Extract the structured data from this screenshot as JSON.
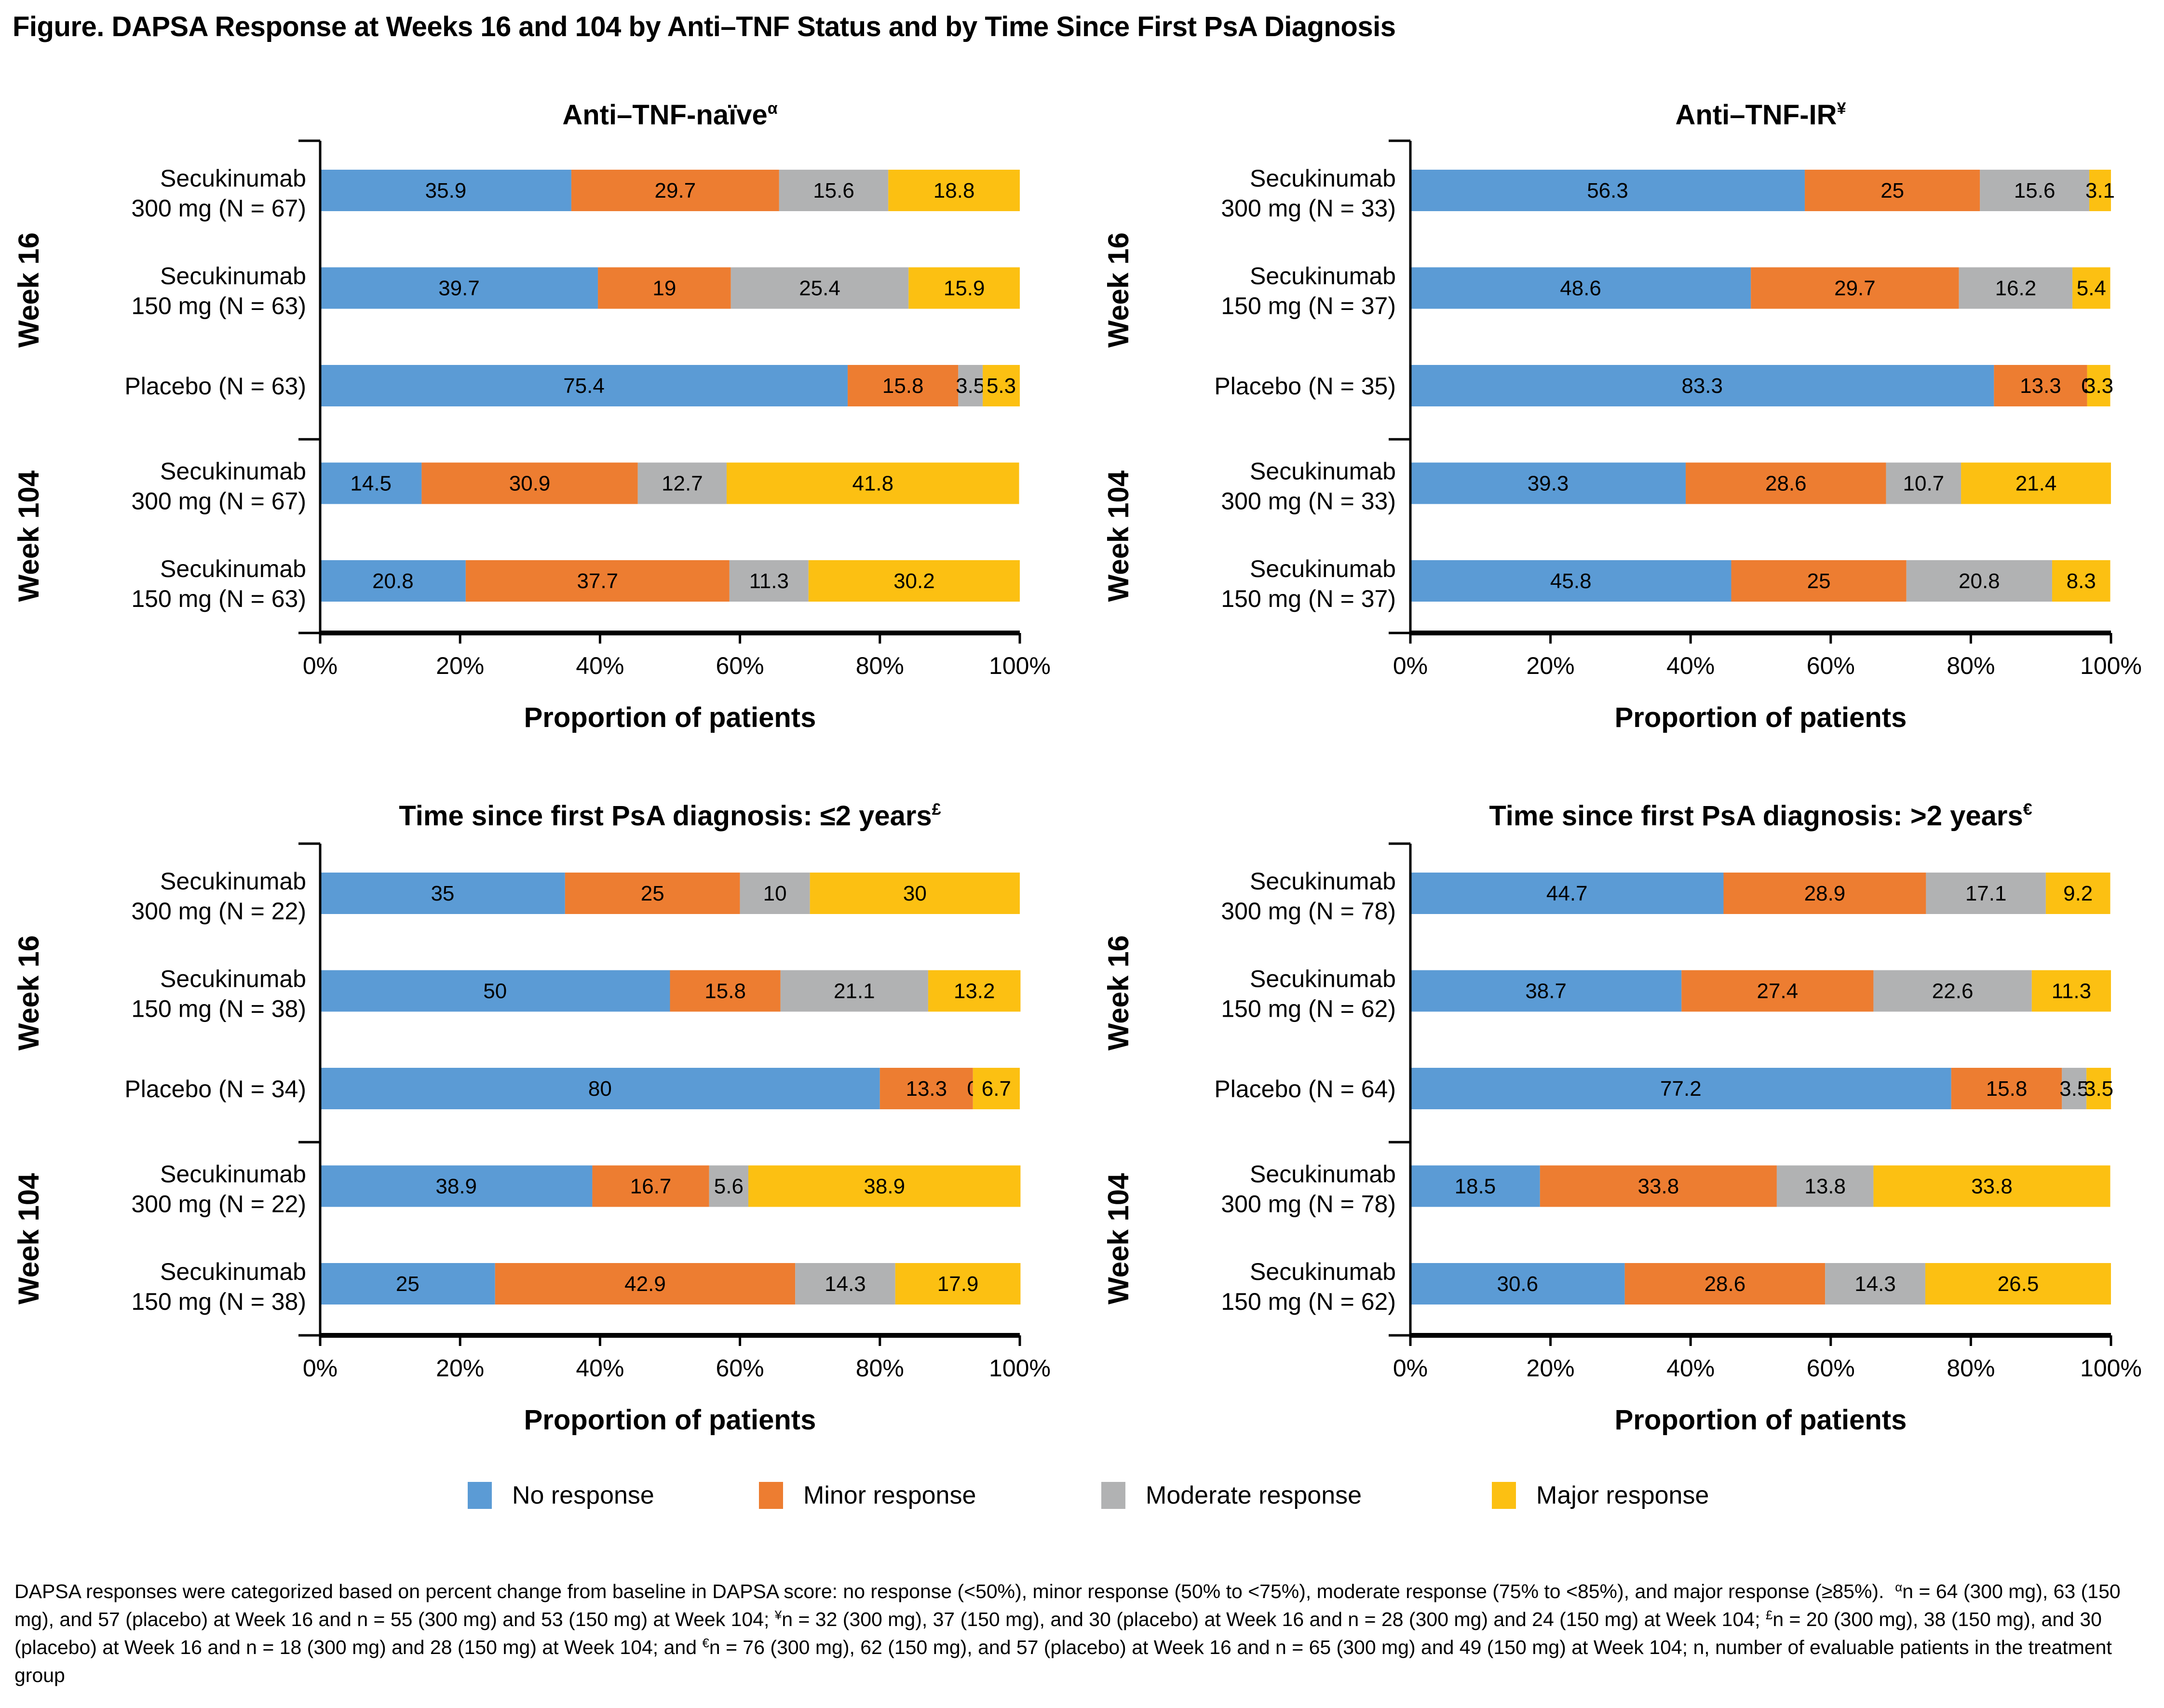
{
  "figure_title": "Figure. DAPSA Response at Weeks 16 and 104 by Anti–TNF Status and by Time Since First PsA Diagnosis",
  "colors": {
    "no_response": "#5B9BD5",
    "minor_response": "#ED7D31",
    "moderate_response": "#B1B2B3",
    "major_response": "#FCC012"
  },
  "legend": [
    {
      "key": "no_response",
      "label": "No response"
    },
    {
      "key": "minor_response",
      "label": "Minor response"
    },
    {
      "key": "moderate_response",
      "label": "Moderate response"
    },
    {
      "key": "major_response",
      "label": "Major response"
    }
  ],
  "footnote": {
    "text_1": "DAPSA responses were categorized based on percent change from baseline in DAPSA score: no response (<50%), minor response (50% to <75%), moderate response (75% to <85%), and major response (≥85%).",
    "mark_a": "α",
    "text_a": "n = 64 (300 mg), 63 (150 mg), and 57 (placebo) at Week 16 and n = 55 (300 mg) and 53 (150 mg) at Week 104;",
    "mark_b": "¥",
    "text_b": "n = 32 (300 mg), 37 (150 mg), and 30 (placebo) at Week 16 and n = 28 (300 mg) and 24 (150 mg) at Week 104;",
    "mark_c": "£",
    "text_c": "n = 20 (300 mg), 38 (150 mg), and 30 (placebo) at Week 16 and n = 18 (300 mg) and 28 (150 mg) at Week 104; and",
    "mark_d": "€",
    "text_d": "n = 76 (300 mg), 62 (150 mg), and 57 (placebo) at Week 16 and n = 65 (300 mg) and 49 (150 mg) at Week 104; n, number of evaluable patients in the treatment group"
  },
  "chart_data": [
    {
      "type": "bar",
      "orientation": "horizontal",
      "stacked": true,
      "title": "Anti–TNF-naïve",
      "title_superscript": "α",
      "xlabel": "Proportion of patients",
      "xlim": [
        0,
        100
      ],
      "xticks": [
        "0%",
        "20%",
        "40%",
        "60%",
        "80%",
        "100%"
      ],
      "groups": [
        {
          "label": "Week 16",
          "rows": [
            0,
            1,
            2
          ]
        },
        {
          "label": "Week 104",
          "rows": [
            3,
            4
          ]
        }
      ],
      "categories": [
        [
          "Secukinumab",
          "300 mg (N = 67)"
        ],
        [
          "Secukinumab",
          "150 mg (N = 63)"
        ],
        [
          "Placebo (N = 63)"
        ],
        [
          "Secukinumab",
          "300 mg (N = 67)"
        ],
        [
          "Secukinumab",
          "150 mg (N = 63)"
        ]
      ],
      "series": [
        {
          "name": "No response",
          "values": [
            35.9,
            39.7,
            75.4,
            14.5,
            20.8
          ]
        },
        {
          "name": "Minor response",
          "values": [
            29.7,
            19,
            15.8,
            30.9,
            37.7
          ]
        },
        {
          "name": "Moderate response",
          "values": [
            15.6,
            25.4,
            3.5,
            12.7,
            11.3
          ]
        },
        {
          "name": "Major response",
          "values": [
            18.8,
            15.9,
            5.3,
            41.8,
            30.2
          ]
        }
      ]
    },
    {
      "type": "bar",
      "orientation": "horizontal",
      "stacked": true,
      "title": "Anti–TNF-IR",
      "title_superscript": "¥",
      "xlabel": "Proportion of patients",
      "xlim": [
        0,
        100
      ],
      "xticks": [
        "0%",
        "20%",
        "40%",
        "60%",
        "80%",
        "100%"
      ],
      "groups": [
        {
          "label": "Week 16",
          "rows": [
            0,
            1,
            2
          ]
        },
        {
          "label": "Week 104",
          "rows": [
            3,
            4
          ]
        }
      ],
      "categories": [
        [
          "Secukinumab",
          "300 mg (N = 33)"
        ],
        [
          "Secukinumab",
          "150 mg (N = 37)"
        ],
        [
          "Placebo (N = 35)"
        ],
        [
          "Secukinumab",
          "300 mg (N = 33)"
        ],
        [
          "Secukinumab",
          "150 mg (N = 37)"
        ]
      ],
      "series": [
        {
          "name": "No response",
          "values": [
            56.3,
            48.6,
            83.3,
            39.3,
            45.8
          ]
        },
        {
          "name": "Minor response",
          "values": [
            25,
            29.7,
            13.3,
            28.6,
            25
          ]
        },
        {
          "name": "Moderate response",
          "values": [
            15.6,
            16.2,
            0,
            10.7,
            20.8
          ]
        },
        {
          "name": "Major response",
          "values": [
            3.1,
            5.4,
            3.3,
            21.4,
            8.3
          ]
        }
      ]
    },
    {
      "type": "bar",
      "orientation": "horizontal",
      "stacked": true,
      "title": "Time since first PsA diagnosis: ≤2 years",
      "title_superscript": "£",
      "xlabel": "Proportion of patients",
      "xlim": [
        0,
        100
      ],
      "xticks": [
        "0%",
        "20%",
        "40%",
        "60%",
        "80%",
        "100%"
      ],
      "groups": [
        {
          "label": "Week 16",
          "rows": [
            0,
            1,
            2
          ]
        },
        {
          "label": "Week 104",
          "rows": [
            3,
            4
          ]
        }
      ],
      "categories": [
        [
          "Secukinumab",
          "300 mg (N = 22)"
        ],
        [
          "Secukinumab",
          "150 mg (N = 38)"
        ],
        [
          "Placebo (N = 34)"
        ],
        [
          "Secukinumab",
          "300 mg (N = 22)"
        ],
        [
          "Secukinumab",
          "150 mg (N = 38)"
        ]
      ],
      "series": [
        {
          "name": "No response",
          "values": [
            35,
            50,
            80,
            38.9,
            25
          ]
        },
        {
          "name": "Minor response",
          "values": [
            25,
            15.8,
            13.3,
            16.7,
            42.9
          ]
        },
        {
          "name": "Moderate response",
          "values": [
            10,
            21.1,
            0,
            5.6,
            14.3
          ]
        },
        {
          "name": "Major response",
          "values": [
            30,
            13.2,
            6.7,
            38.9,
            17.9
          ]
        }
      ]
    },
    {
      "type": "bar",
      "orientation": "horizontal",
      "stacked": true,
      "title": "Time since first PsA diagnosis: >2 years",
      "title_superscript": "€",
      "xlabel": "Proportion of patients",
      "xlim": [
        0,
        100
      ],
      "xticks": [
        "0%",
        "20%",
        "40%",
        "60%",
        "80%",
        "100%"
      ],
      "groups": [
        {
          "label": "Week 16",
          "rows": [
            0,
            1,
            2
          ]
        },
        {
          "label": "Week 104",
          "rows": [
            3,
            4
          ]
        }
      ],
      "categories": [
        [
          "Secukinumab",
          "300 mg (N = 78)"
        ],
        [
          "Secukinumab",
          "150 mg (N = 62)"
        ],
        [
          "Placebo (N = 64)"
        ],
        [
          "Secukinumab",
          "300 mg (N = 78)"
        ],
        [
          "Secukinumab",
          "150 mg (N = 62)"
        ]
      ],
      "series": [
        {
          "name": "No response",
          "values": [
            44.7,
            38.7,
            77.2,
            18.5,
            30.6
          ]
        },
        {
          "name": "Minor response",
          "values": [
            28.9,
            27.4,
            15.8,
            33.8,
            28.6
          ]
        },
        {
          "name": "Moderate response",
          "values": [
            17.1,
            22.6,
            3.5,
            13.8,
            14.3
          ]
        },
        {
          "name": "Major response",
          "values": [
            9.2,
            11.3,
            3.5,
            33.8,
            26.5
          ]
        }
      ]
    }
  ]
}
